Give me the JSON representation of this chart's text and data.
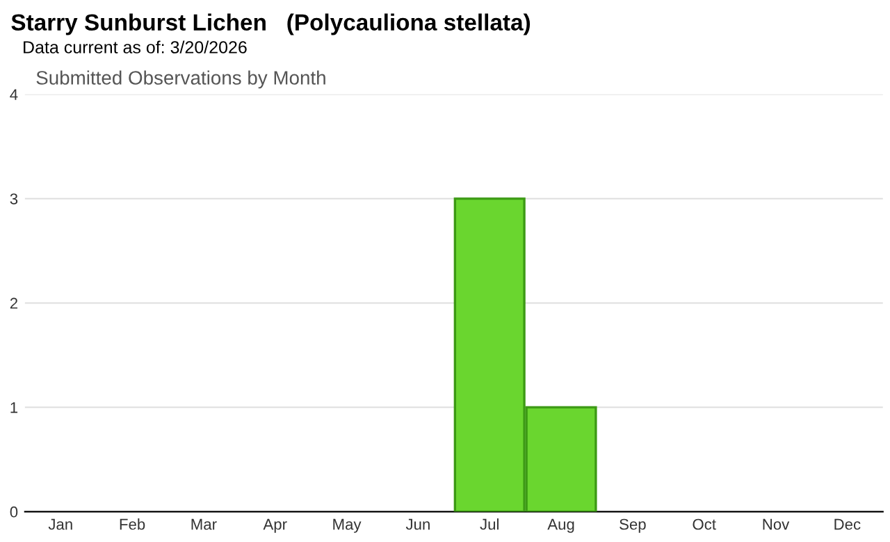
{
  "chart_data": {
    "type": "bar",
    "title": "Starry Sunburst Lichen   (Polycauliona stellata)",
    "subtitle": "Data current as of: 3/20/2026",
    "annotations": [
      "Submitted Observations by Month"
    ],
    "categories": [
      "Jan",
      "Feb",
      "Mar",
      "Apr",
      "May",
      "Jun",
      "Jul",
      "Aug",
      "Sep",
      "Oct",
      "Nov",
      "Dec"
    ],
    "values": [
      0,
      0,
      0,
      0,
      0,
      0,
      3,
      1,
      0,
      0,
      0,
      0
    ],
    "color": "#6ad62f",
    "ylim": [
      0,
      4
    ],
    "yticks": [
      0,
      1,
      2,
      3,
      4
    ],
    "grid": "y",
    "legend": false
  }
}
